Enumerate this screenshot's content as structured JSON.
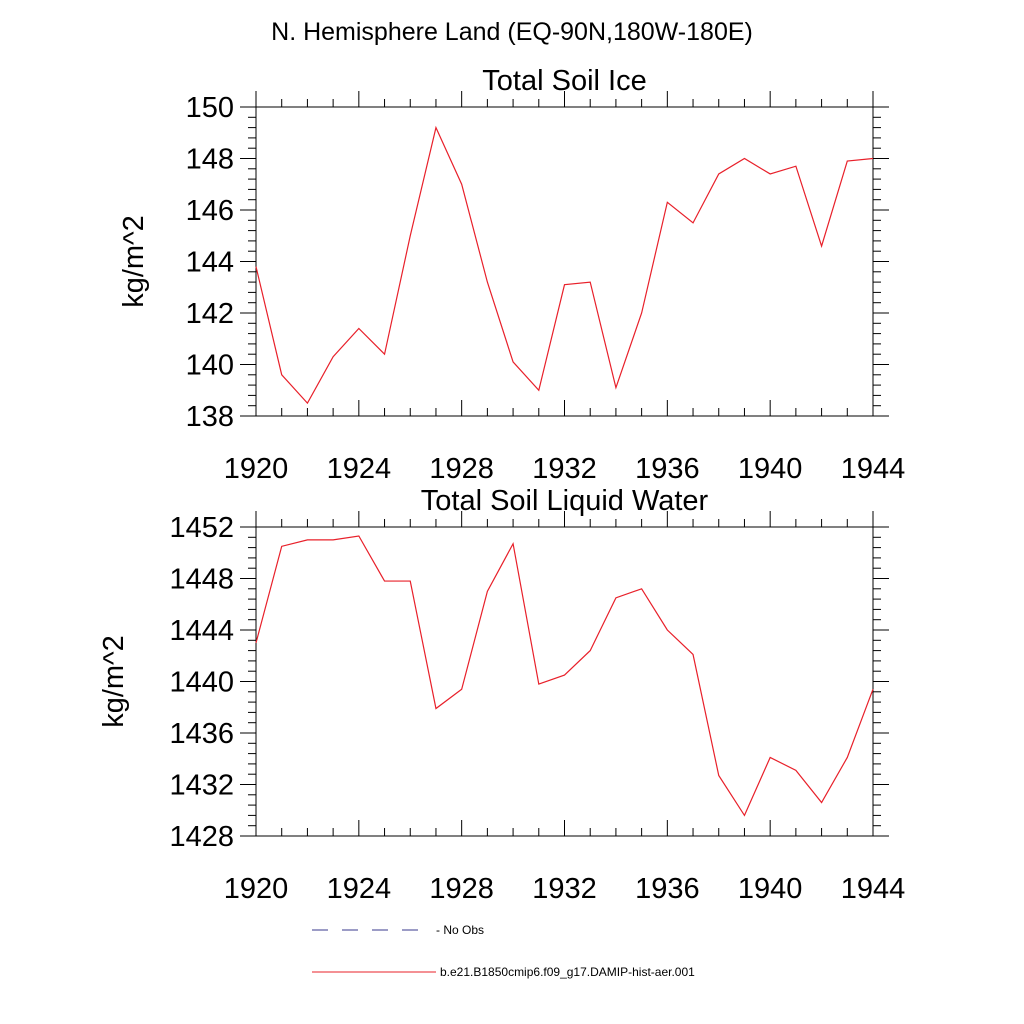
{
  "figure": {
    "suptitle": "N. Hemisphere Land (EQ-90N,180W-180E)",
    "line_color": "#e8202a",
    "dash_color": "#3a3a8c"
  },
  "chart_data": [
    {
      "type": "line",
      "title": "Total Soil Ice",
      "xlabel": "",
      "ylabel": "kg/m^2",
      "xlim": [
        1920,
        1944
      ],
      "ylim": [
        138,
        150
      ],
      "x_ticks": [
        "1920",
        "1924",
        "1928",
        "1932",
        "1936",
        "1940",
        "1944"
      ],
      "y_ticks": [
        "138",
        "140",
        "142",
        "144",
        "146",
        "148",
        "150"
      ],
      "grid": false,
      "series": [
        {
          "name": "b.e21.B1850cmip6.f09_g17.DAMIP-hist-aer.001",
          "x": [
            1920,
            1921,
            1922,
            1923,
            1924,
            1925,
            1926,
            1927,
            1928,
            1929,
            1930,
            1931,
            1932,
            1933,
            1934,
            1935,
            1936,
            1937,
            1938,
            1939,
            1940,
            1941,
            1942,
            1943,
            1944
          ],
          "values": [
            143.8,
            139.6,
            138.5,
            140.3,
            141.4,
            140.4,
            145.0,
            149.2,
            147.0,
            143.2,
            140.1,
            139.0,
            143.1,
            143.2,
            139.1,
            142.0,
            146.3,
            145.5,
            147.4,
            148.0,
            147.4,
            147.7,
            144.6,
            147.9,
            148.0
          ]
        }
      ]
    },
    {
      "type": "line",
      "title": "Total Soil Liquid Water",
      "xlabel": "",
      "ylabel": "kg/m^2",
      "xlim": [
        1920,
        1944
      ],
      "ylim": [
        1428,
        1452
      ],
      "x_ticks": [
        "1920",
        "1924",
        "1928",
        "1932",
        "1936",
        "1940",
        "1944"
      ],
      "y_ticks": [
        "1428",
        "1432",
        "1436",
        "1440",
        "1444",
        "1448",
        "1452"
      ],
      "grid": false,
      "series": [
        {
          "name": "b.e21.B1850cmip6.f09_g17.DAMIP-hist-aer.001",
          "x": [
            1920,
            1921,
            1922,
            1923,
            1924,
            1925,
            1926,
            1927,
            1928,
            1929,
            1930,
            1931,
            1932,
            1933,
            1934,
            1935,
            1936,
            1937,
            1938,
            1939,
            1940,
            1941,
            1942,
            1943,
            1944
          ],
          "values": [
            1443.0,
            1450.5,
            1451.0,
            1451.0,
            1451.3,
            1447.8,
            1447.8,
            1437.9,
            1439.4,
            1447.0,
            1450.7,
            1439.8,
            1440.5,
            1442.4,
            1446.5,
            1447.2,
            1444.0,
            1442.1,
            1432.7,
            1429.6,
            1434.1,
            1433.1,
            1430.6,
            1434.1,
            1439.4
          ]
        }
      ]
    }
  ],
  "legend": {
    "placement": "bottom-center",
    "entries": [
      {
        "label": "No Obs",
        "style": "dashed"
      },
      {
        "label": "b.e21.B1850cmip6.f09_g17.DAMIP-hist-aer.001",
        "style": "solid"
      }
    ]
  }
}
